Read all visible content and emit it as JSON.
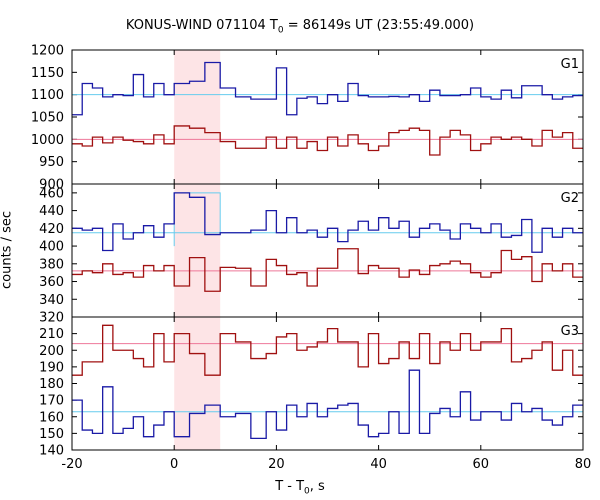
{
  "title": {
    "prefix": "KONUS-WIND 071104 T",
    "sub": "0",
    "suffix": " = 86149s UT (23:55:49.000)"
  },
  "xlabel": {
    "prefix": "T - T",
    "sub": "0",
    "suffix": ", s"
  },
  "ylabel": "counts / sec",
  "colors": {
    "blue": "#1a1aa6",
    "red": "#a01010",
    "blue_bg": "#66ccee",
    "red_bg": "#ee7799",
    "highlight": "#fde4e6"
  },
  "chart_data": {
    "type": "line",
    "step": true,
    "xlim": [
      -20,
      80
    ],
    "xticks": [
      -20,
      0,
      20,
      40,
      60,
      80
    ],
    "highlight_interval": [
      0,
      9
    ],
    "bin_edges": [
      -20,
      -18,
      -16,
      -14,
      -12,
      -10,
      -8,
      -6,
      -4,
      -2,
      0,
      3,
      6,
      9,
      12,
      15,
      18,
      20,
      22,
      24,
      26,
      28,
      30,
      32,
      34,
      36,
      38,
      40,
      42,
      44,
      46,
      48,
      50,
      52,
      54,
      56,
      58,
      60,
      62,
      64,
      66,
      68,
      70,
      72,
      74,
      76,
      78,
      80
    ],
    "panels": [
      {
        "label": "G1",
        "ylim": [
          900,
          1200
        ],
        "yticks": [
          900,
          950,
          1000,
          1050,
          1100,
          1150,
          1200
        ],
        "series": [
          {
            "color": "blue",
            "background": 1100,
            "values": [
              1055,
              1125,
              1115,
              1095,
              1100,
              1098,
              1145,
              1095,
              1125,
              1100,
              1125,
              1130,
              1172,
              1115,
              1095,
              1090,
              1090,
              1160,
              1055,
              1092,
              1095,
              1080,
              1100,
              1085,
              1125,
              1098,
              1095,
              1095,
              1096,
              1095,
              1100,
              1085,
              1110,
              1098,
              1098,
              1100,
              1115,
              1095,
              1090,
              1110,
              1093,
              1120,
              1120,
              1100,
              1090,
              1095,
              1098
            ]
          },
          {
            "color": "red",
            "background": 1000,
            "values": [
              990,
              985,
              1005,
              992,
              1005,
              998,
              995,
              990,
              1010,
              990,
              1030,
              1025,
              1015,
              995,
              980,
              980,
              1005,
              980,
              1005,
              980,
              995,
              975,
              1005,
              985,
              1010,
              990,
              975,
              985,
              1015,
              1020,
              1025,
              1020,
              965,
              1005,
              1020,
              1010,
              975,
              990,
              1005,
              1000,
              1005,
              1000,
              985,
              1020,
              1005,
              1015,
              980
            ]
          }
        ]
      },
      {
        "label": "G2",
        "ylim": [
          320,
          470
        ],
        "yticks": [
          320,
          340,
          360,
          380,
          400,
          420,
          440,
          460
        ],
        "series": [
          {
            "color": "blue",
            "background": 415,
            "highlight_values": [
              460,
              460,
              460
            ],
            "values": [
              420,
              418,
              420,
              395,
              425,
              408,
              415,
              423,
              410,
              425,
              460,
              455,
              413,
              415,
              415,
              418,
              440,
              415,
              432,
              415,
              418,
              410,
              420,
              405,
              418,
              428,
              418,
              432,
              420,
              428,
              410,
              420,
              425,
              418,
              408,
              425,
              420,
              415,
              425,
              410,
              412,
              430,
              393,
              420,
              410,
              420,
              415
            ]
          },
          {
            "color": "red",
            "background": 372,
            "values": [
              368,
              372,
              370,
              380,
              368,
              370,
              365,
              378,
              372,
              378,
              355,
              387,
              349,
              376,
              375,
              355,
              385,
              378,
              368,
              370,
              355,
              375,
              375,
              397,
              397,
              369,
              378,
              375,
              375,
              365,
              373,
              368,
              378,
              380,
              383,
              380,
              370,
              365,
              370,
              395,
              385,
              388,
              360,
              380,
              372,
              380,
              365
            ]
          }
        ]
      },
      {
        "label": "G3",
        "ylim": [
          140,
          220
        ],
        "yticks": [
          140,
          150,
          160,
          170,
          180,
          190,
          200,
          210,
          220
        ],
        "series": [
          {
            "color": "blue",
            "background": 163,
            "values": [
              170,
              152,
              150,
              178,
              150,
              153,
              160,
              148,
              155,
              163,
              148,
              162,
              167,
              160,
              162,
              147,
              163,
              152,
              167,
              160,
              168,
              160,
              165,
              167,
              168,
              155,
              148,
              150,
              163,
              150,
              188,
              150,
              162,
              165,
              160,
              175,
              158,
              163,
              163,
              158,
              168,
              163,
              165,
              158,
              155,
              160,
              167
            ]
          },
          {
            "color": "red",
            "background": 204,
            "values": [
              185,
              193,
              193,
              215,
              200,
              200,
              195,
              190,
              210,
              193,
              210,
              198,
              185,
              210,
              205,
              195,
              198,
              208,
              210,
              200,
              202,
              205,
              213,
              205,
              205,
              190,
              210,
              192,
              195,
              205,
              195,
              210,
              192,
              205,
              200,
              210,
              200,
              205,
              205,
              213,
              193,
              195,
              200,
              205,
              188,
              200,
              185
            ]
          }
        ]
      }
    ]
  }
}
